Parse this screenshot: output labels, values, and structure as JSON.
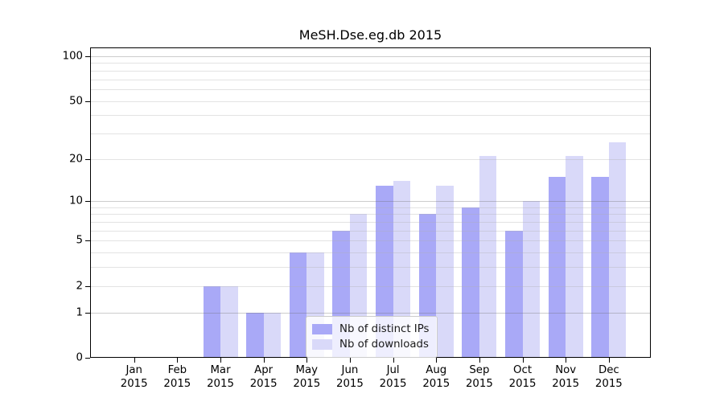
{
  "chart_data": {
    "type": "bar",
    "title": "MeSH.Dse.eg.db 2015",
    "categories": [
      "Jan",
      "Feb",
      "Mar",
      "Apr",
      "May",
      "Jun",
      "Jul",
      "Aug",
      "Sep",
      "Oct",
      "Nov",
      "Dec"
    ],
    "year": "2015",
    "series": [
      {
        "name": "Nb of distinct IPs",
        "color": "#a9a9f7",
        "values": [
          0,
          0,
          2,
          1,
          4,
          6,
          13,
          8,
          9,
          6,
          15,
          15
        ]
      },
      {
        "name": "Nb of downloads",
        "color": "#d9d9f9",
        "values": [
          0,
          0,
          2,
          1,
          4,
          8,
          14,
          13,
          21,
          10,
          21,
          26
        ]
      }
    ],
    "yscale": "log1p",
    "ylim": [
      0,
      113
    ],
    "yticks": [
      0,
      1,
      2,
      5,
      10,
      20,
      50,
      100
    ],
    "grid": {
      "major": [
        1,
        10,
        100
      ],
      "minor": [
        2,
        3,
        4,
        5,
        6,
        7,
        8,
        9,
        20,
        30,
        40,
        50,
        60,
        70,
        80,
        90
      ]
    },
    "legend_position": "bottom-center",
    "colors": {
      "major_grid": "rgba(110,110,110,0.35)",
      "minor_grid": "rgba(175,175,175,0.35)",
      "spine": "#000000",
      "text": "#000000"
    }
  }
}
